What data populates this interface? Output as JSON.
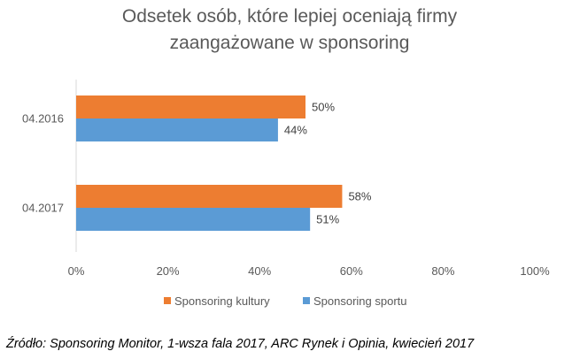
{
  "chart_data": {
    "type": "bar",
    "orientation": "horizontal",
    "title_lines": [
      "Odsetek osób, które lepiej oceniają firmy",
      "zaangażowane w sponsoring"
    ],
    "categories": [
      "04.2016",
      "04.2017"
    ],
    "series": [
      {
        "name": "Sponsoring kultury",
        "values": [
          50,
          58
        ],
        "labels": [
          "50%",
          "58%"
        ],
        "color": "#ED7D31"
      },
      {
        "name": "Sponsoring sportu",
        "values": [
          44,
          51
        ],
        "labels": [
          "44%",
          "51%"
        ],
        "color": "#5B9BD5"
      }
    ],
    "xlim": [
      0,
      100
    ],
    "x_ticks": [
      "0%",
      "20%",
      "40%",
      "60%",
      "80%",
      "100%"
    ],
    "grid": false,
    "legend_position": "bottom"
  },
  "source": "Źródło: Sponsoring Monitor, 1-wsza fala 2017, ARC Rynek i Opinia, kwiecień 2017"
}
